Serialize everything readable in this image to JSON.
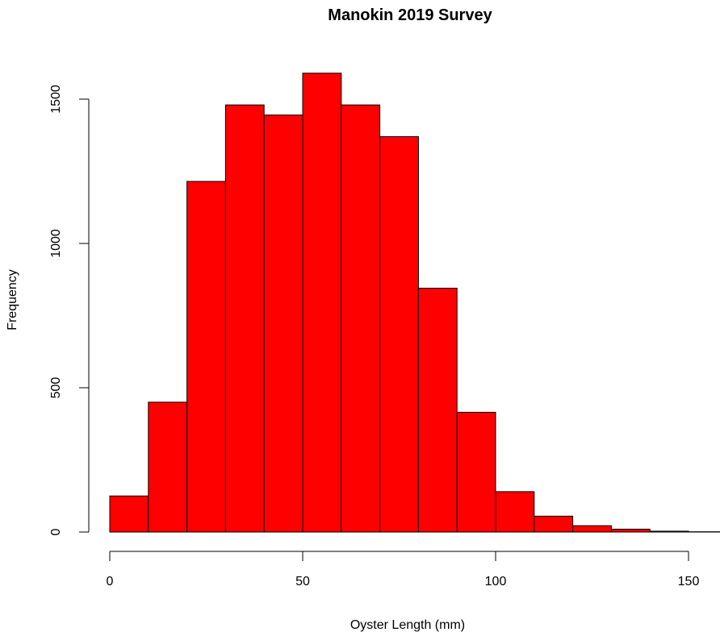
{
  "chart_data": {
    "type": "bar",
    "title": "Manokin 2019 Survey",
    "xlabel": "Oyster Length (mm)",
    "ylabel": "Frequency",
    "xlim": [
      0,
      160
    ],
    "ylim": [
      0,
      1600
    ],
    "bins": [
      {
        "start": 0,
        "end": 10,
        "value": 125
      },
      {
        "start": 10,
        "end": 20,
        "value": 450
      },
      {
        "start": 20,
        "end": 30,
        "value": 1215
      },
      {
        "start": 30,
        "end": 40,
        "value": 1480
      },
      {
        "start": 40,
        "end": 50,
        "value": 1445
      },
      {
        "start": 50,
        "end": 60,
        "value": 1590
      },
      {
        "start": 60,
        "end": 70,
        "value": 1480
      },
      {
        "start": 70,
        "end": 80,
        "value": 1370
      },
      {
        "start": 80,
        "end": 90,
        "value": 845
      },
      {
        "start": 90,
        "end": 100,
        "value": 415
      },
      {
        "start": 100,
        "end": 110,
        "value": 140
      },
      {
        "start": 110,
        "end": 120,
        "value": 55
      },
      {
        "start": 120,
        "end": 130,
        "value": 22
      },
      {
        "start": 130,
        "end": 140,
        "value": 10
      },
      {
        "start": 140,
        "end": 150,
        "value": 3
      },
      {
        "start": 150,
        "end": 160,
        "value": 1
      }
    ],
    "x_ticks": [
      0,
      50,
      100,
      150
    ],
    "x_tick_labels": [
      "0",
      "50",
      "100",
      "150"
    ],
    "y_ticks": [
      0,
      500,
      1000,
      1500
    ],
    "y_tick_labels": [
      "0",
      "500",
      "1000",
      "1500"
    ],
    "bar_color": "#ff0000",
    "bar_border_color": "#000000",
    "grid": false,
    "legend": "none"
  }
}
